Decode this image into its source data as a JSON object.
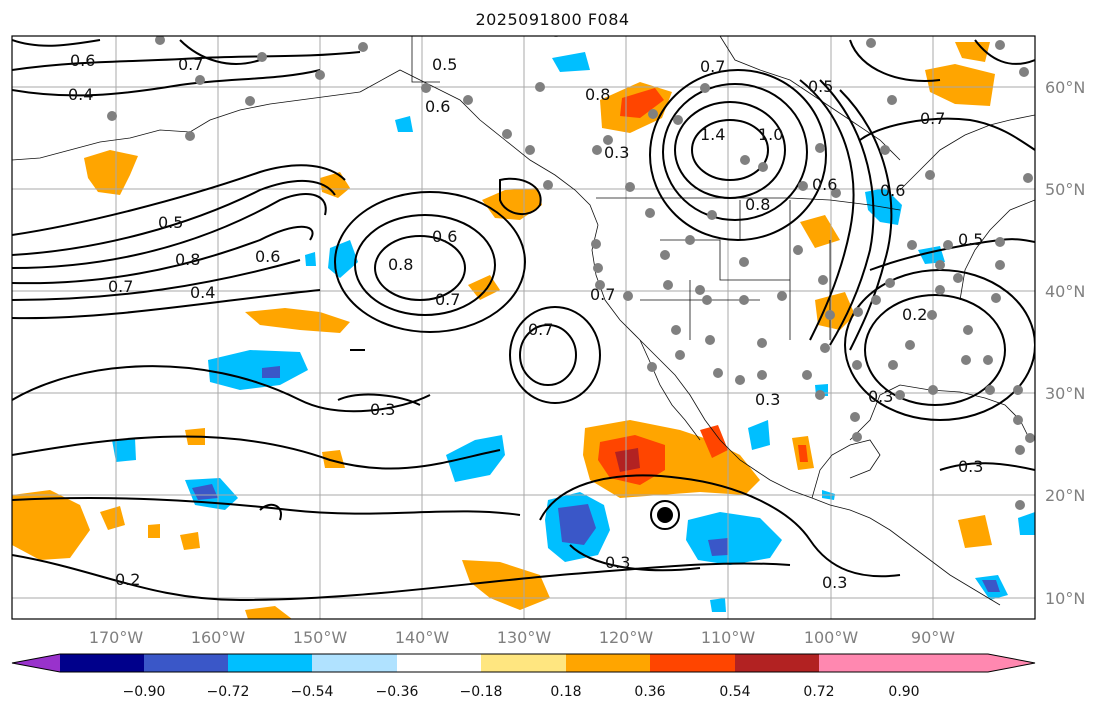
{
  "title": "2025091800 F084",
  "lon_labels": [
    "170°W",
    "160°W",
    "150°W",
    "140°W",
    "130°W",
    "120°W",
    "110°W",
    "100°W",
    "90°W"
  ],
  "lat_labels": [
    "60°N",
    "50°N",
    "40°N",
    "30°N",
    "20°N",
    "10°N"
  ],
  "colorbar": {
    "colors": [
      "#9932cc",
      "#00008b",
      "#3a57c8",
      "#00bfff",
      "#b0e2ff",
      "#ffffff",
      "#ffe680",
      "#ffa500",
      "#ff4500",
      "#b22222",
      "#ff88b0"
    ],
    "ticks": [
      "−0.90",
      "−0.72",
      "−0.54",
      "−0.36",
      "−0.18",
      "0.18",
      "0.36",
      "0.54",
      "0.72",
      "0.90"
    ]
  },
  "contour_labels": [
    {
      "text": "0.6"
    },
    {
      "text": "0.7"
    },
    {
      "text": "0.4"
    },
    {
      "text": "0.5"
    },
    {
      "text": "0.8"
    },
    {
      "text": "0.6"
    },
    {
      "text": "0.7"
    },
    {
      "text": "0.4"
    },
    {
      "text": "0.8"
    },
    {
      "text": "0.6"
    },
    {
      "text": "0.7"
    },
    {
      "text": "0.7"
    },
    {
      "text": "0.3"
    },
    {
      "text": "0.2"
    },
    {
      "text": "0.3"
    },
    {
      "text": "0.3"
    },
    {
      "text": "0.5"
    },
    {
      "text": "0.6"
    },
    {
      "text": "0.8"
    },
    {
      "text": "0.7"
    },
    {
      "text": "1.4"
    },
    {
      "text": "1.0"
    },
    {
      "text": "0.3"
    },
    {
      "text": "0.5"
    },
    {
      "text": "0.7"
    },
    {
      "text": "0.6"
    },
    {
      "text": "0.8"
    },
    {
      "text": "0.2"
    },
    {
      "text": "0.3"
    },
    {
      "text": "0.3"
    },
    {
      "text": "0.3"
    },
    {
      "text": "0.5"
    },
    {
      "text": "0.6"
    },
    {
      "text": "0.7"
    }
  ]
}
